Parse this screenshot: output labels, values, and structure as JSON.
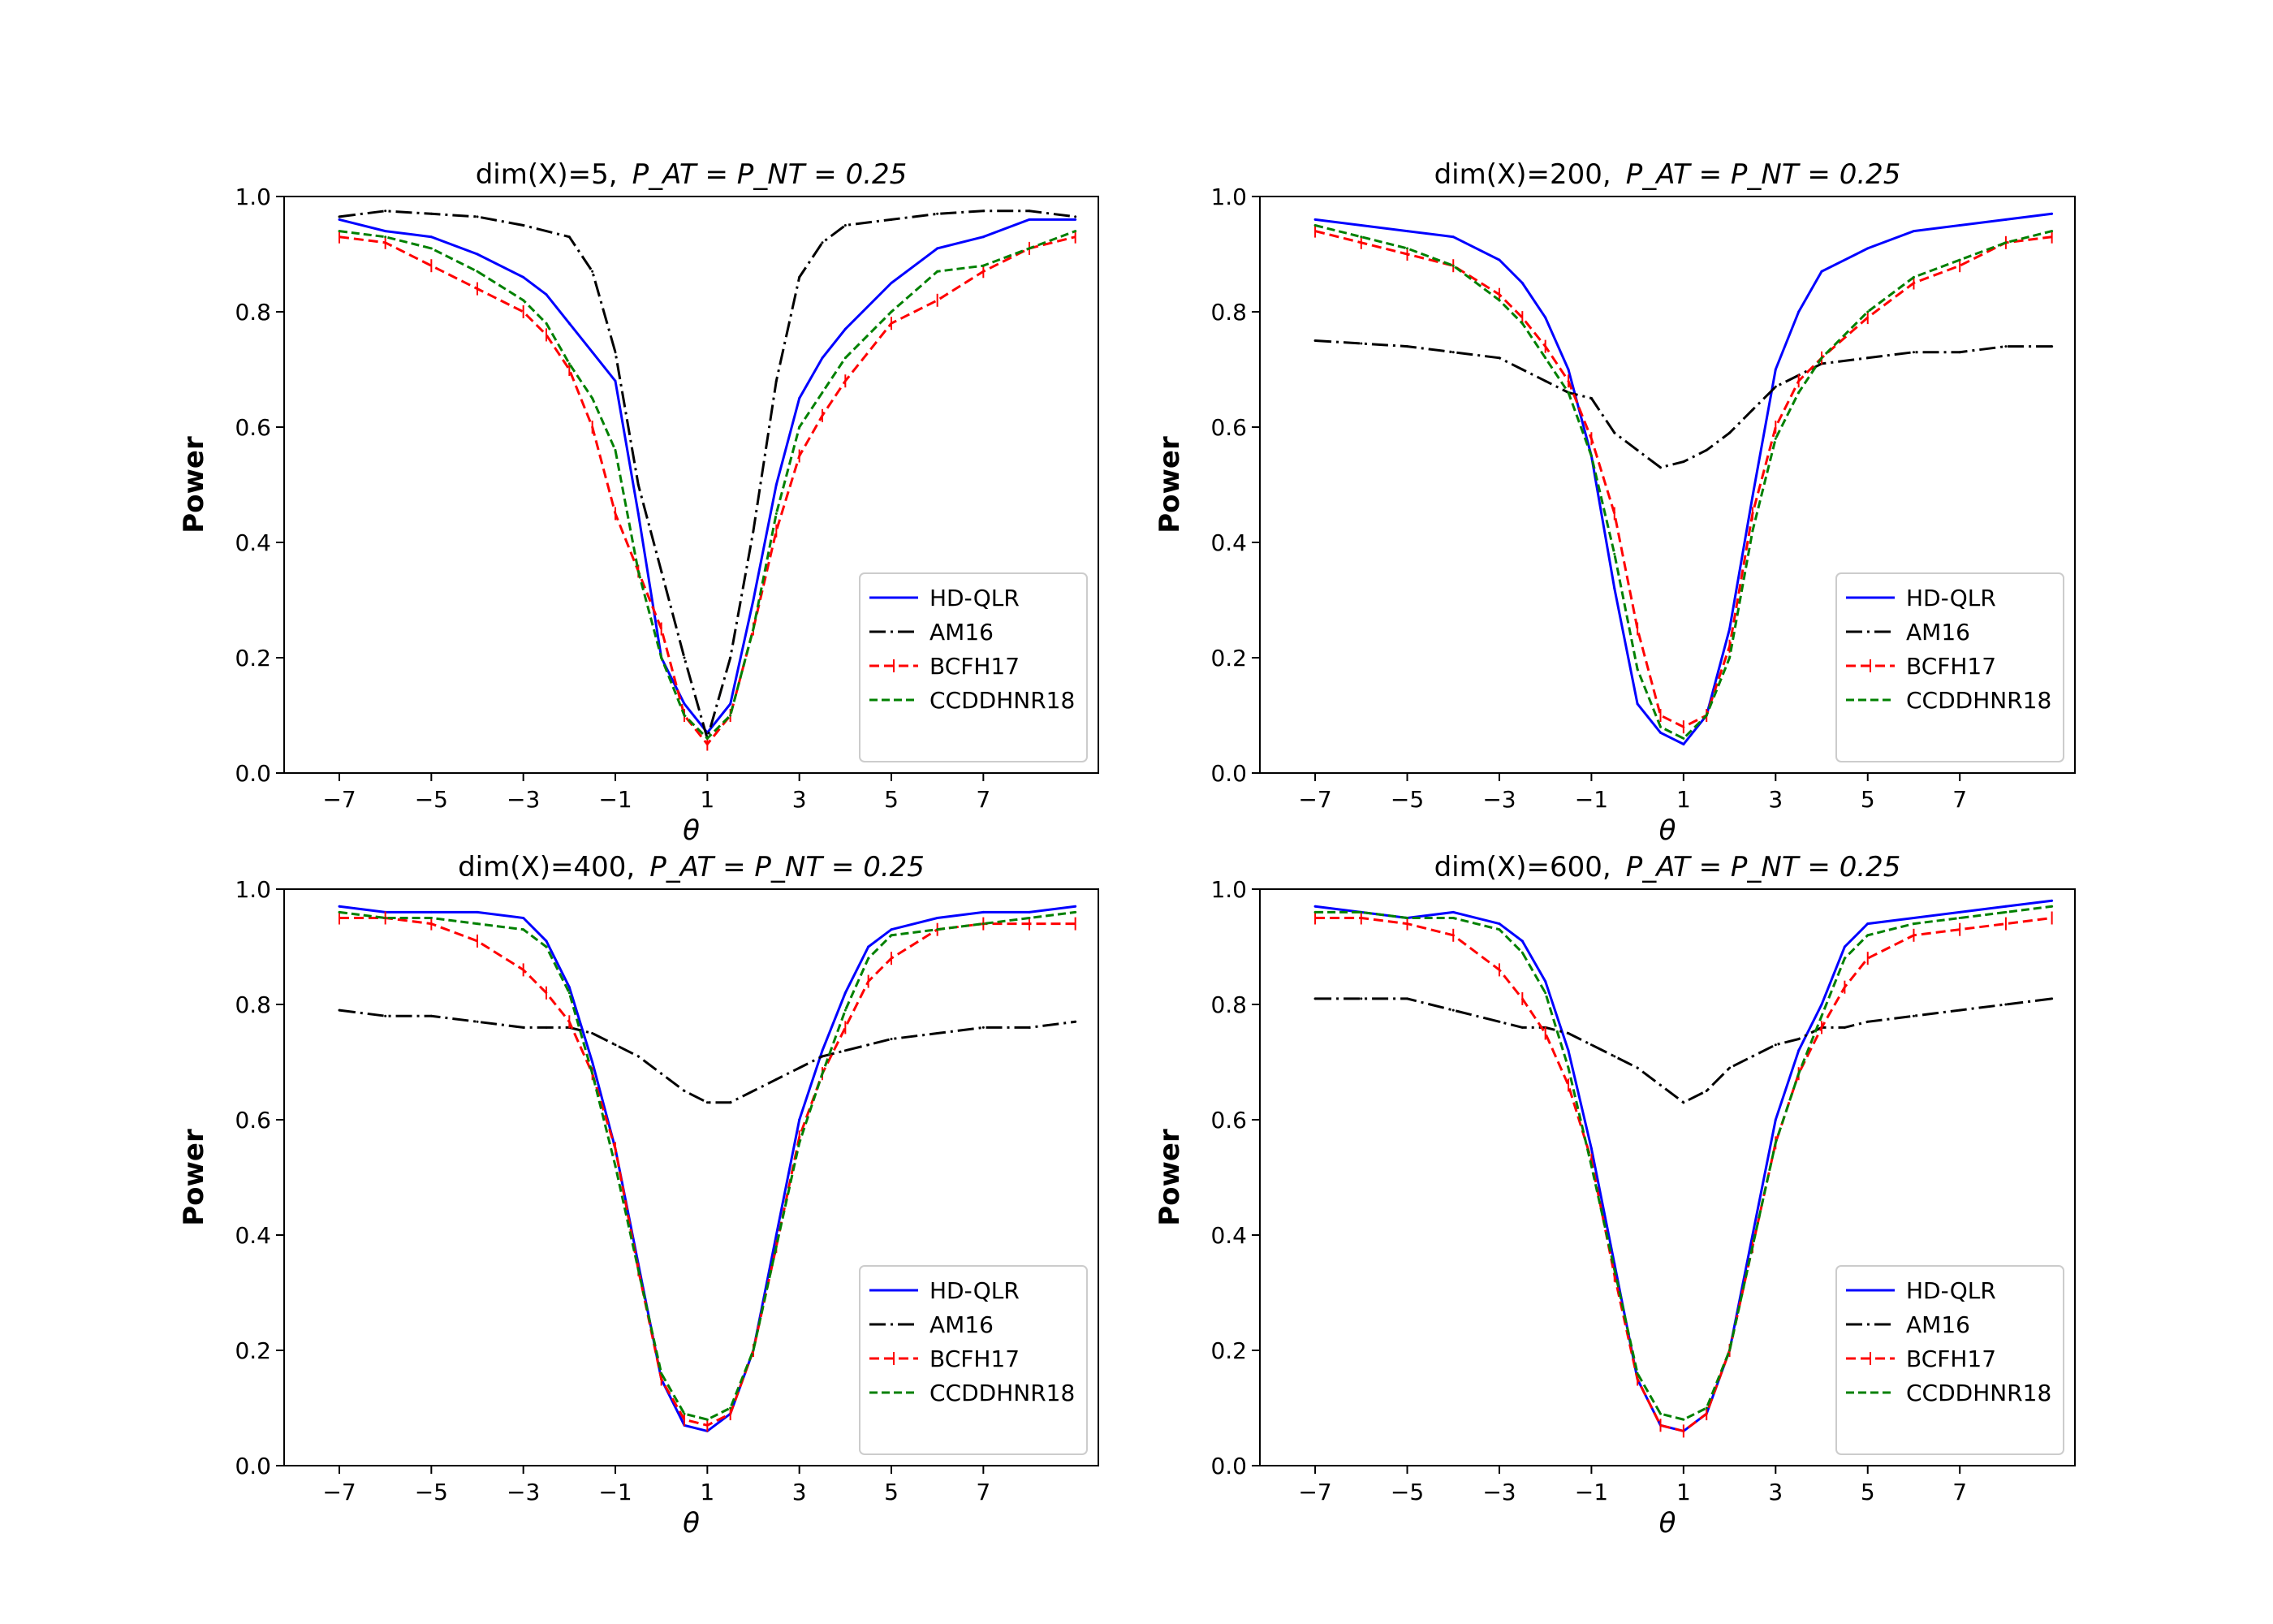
{
  "chart_data": [
    {
      "type": "line",
      "title": "dim(X)=5,",
      "title_math": "P_AT = P_NT = 0.25",
      "xlabel": "θ",
      "ylabel": "Power",
      "xlim": [
        -8.2,
        9.5
      ],
      "ylim": [
        0.0,
        1.0
      ],
      "xticks": [
        -7,
        -5,
        -3,
        -1,
        1,
        3,
        5,
        7
      ],
      "xtick_labels": [
        "−7",
        "−5",
        "−3",
        "−1",
        "1",
        "3",
        "5",
        "7"
      ],
      "yticks": [
        0.0,
        0.2,
        0.4,
        0.6,
        0.8,
        1.0
      ],
      "ytick_labels": [
        "0.0",
        "0.2",
        "0.4",
        "0.6",
        "0.8",
        "1.0"
      ],
      "legend": [
        "HD-QLR",
        "AM16",
        "BCFH17",
        "CCDDHNR18"
      ],
      "legend_location": "lower-right",
      "series": [
        {
          "name": "HD-QLR",
          "x": [
            -7,
            -6,
            -5,
            -4,
            -3,
            -2.5,
            -2,
            -1.5,
            -1,
            -0.5,
            0,
            0.5,
            1,
            1.5,
            2,
            2.5,
            3,
            3.5,
            4,
            5,
            6,
            7,
            8,
            9
          ],
          "values": [
            0.96,
            0.94,
            0.93,
            0.9,
            0.86,
            0.83,
            0.78,
            0.73,
            0.68,
            0.45,
            0.2,
            0.12,
            0.07,
            0.12,
            0.3,
            0.5,
            0.65,
            0.72,
            0.77,
            0.85,
            0.91,
            0.93,
            0.96,
            0.96
          ]
        },
        {
          "name": "AM16",
          "x": [
            -7,
            -6,
            -5,
            -4,
            -3,
            -2.5,
            -2,
            -1.5,
            -1,
            -0.5,
            0,
            0.5,
            1,
            1.5,
            2,
            2.5,
            3,
            3.5,
            4,
            5,
            6,
            7,
            8,
            9
          ],
          "values": [
            0.965,
            0.975,
            0.97,
            0.965,
            0.95,
            0.94,
            0.93,
            0.87,
            0.73,
            0.5,
            0.35,
            0.2,
            0.06,
            0.2,
            0.42,
            0.68,
            0.86,
            0.92,
            0.95,
            0.96,
            0.97,
            0.975,
            0.975,
            0.965
          ]
        },
        {
          "name": "BCFH17",
          "x": [
            -7,
            -6,
            -5,
            -4,
            -3,
            -2.5,
            -2,
            -1.5,
            -1,
            -0.5,
            0,
            0.5,
            1,
            1.5,
            2,
            2.5,
            3,
            3.5,
            4,
            5,
            6,
            7,
            8,
            9
          ],
          "values": [
            0.93,
            0.92,
            0.88,
            0.84,
            0.8,
            0.76,
            0.7,
            0.6,
            0.45,
            0.35,
            0.25,
            0.1,
            0.05,
            0.1,
            0.25,
            0.42,
            0.55,
            0.62,
            0.68,
            0.78,
            0.82,
            0.87,
            0.91,
            0.93
          ]
        },
        {
          "name": "CCDDHNR18",
          "x": [
            -7,
            -6,
            -5,
            -4,
            -3,
            -2.5,
            -2,
            -1.5,
            -1,
            -0.5,
            0,
            0.5,
            1,
            1.5,
            2,
            2.5,
            3,
            3.5,
            4,
            5,
            6,
            7,
            8,
            9
          ],
          "values": [
            0.94,
            0.93,
            0.91,
            0.87,
            0.82,
            0.78,
            0.71,
            0.65,
            0.56,
            0.35,
            0.2,
            0.1,
            0.06,
            0.1,
            0.25,
            0.45,
            0.6,
            0.66,
            0.72,
            0.8,
            0.87,
            0.88,
            0.91,
            0.94
          ]
        }
      ]
    },
    {
      "type": "line",
      "title": "dim(X)=200,",
      "title_math": "P_AT = P_NT = 0.25",
      "xlabel": "θ",
      "ylabel": "Power",
      "xlim": [
        -8.2,
        9.5
      ],
      "ylim": [
        0.0,
        1.0
      ],
      "xticks": [
        -7,
        -5,
        -3,
        -1,
        1,
        3,
        5,
        7
      ],
      "xtick_labels": [
        "−7",
        "−5",
        "−3",
        "−1",
        "1",
        "3",
        "5",
        "7"
      ],
      "yticks": [
        0.0,
        0.2,
        0.4,
        0.6,
        0.8,
        1.0
      ],
      "ytick_labels": [
        "0.0",
        "0.2",
        "0.4",
        "0.6",
        "0.8",
        "1.0"
      ],
      "legend": [
        "HD-QLR",
        "AM16",
        "BCFH17",
        "CCDDHNR18"
      ],
      "legend_location": "lower-right",
      "series": [
        {
          "name": "HD-QLR",
          "x": [
            -7,
            -6,
            -5,
            -4,
            -3,
            -2.5,
            -2,
            -1.5,
            -1,
            -0.5,
            0,
            0.5,
            1,
            1.5,
            2,
            2.5,
            3,
            3.5,
            4,
            5,
            6,
            7,
            8,
            9
          ],
          "values": [
            0.96,
            0.95,
            0.94,
            0.93,
            0.89,
            0.85,
            0.79,
            0.7,
            0.55,
            0.32,
            0.12,
            0.07,
            0.05,
            0.1,
            0.25,
            0.48,
            0.7,
            0.8,
            0.87,
            0.91,
            0.94,
            0.95,
            0.96,
            0.97
          ]
        },
        {
          "name": "AM16",
          "x": [
            -7,
            -6,
            -5,
            -4,
            -3,
            -2.5,
            -2,
            -1.5,
            -1,
            -0.5,
            0,
            0.5,
            1,
            1.5,
            2,
            2.5,
            3,
            3.5,
            4,
            5,
            6,
            7,
            8,
            9
          ],
          "values": [
            0.75,
            0.745,
            0.74,
            0.73,
            0.72,
            0.7,
            0.68,
            0.66,
            0.65,
            0.59,
            0.56,
            0.53,
            0.54,
            0.56,
            0.59,
            0.63,
            0.67,
            0.69,
            0.71,
            0.72,
            0.73,
            0.73,
            0.74,
            0.74
          ]
        },
        {
          "name": "BCFH17",
          "x": [
            -7,
            -6,
            -5,
            -4,
            -3,
            -2.5,
            -2,
            -1.5,
            -1,
            -0.5,
            0,
            0.5,
            1,
            1.5,
            2,
            2.5,
            3,
            3.5,
            4,
            5,
            6,
            7,
            8,
            9
          ],
          "values": [
            0.94,
            0.92,
            0.9,
            0.88,
            0.83,
            0.79,
            0.74,
            0.68,
            0.58,
            0.45,
            0.25,
            0.1,
            0.08,
            0.1,
            0.22,
            0.45,
            0.6,
            0.68,
            0.72,
            0.79,
            0.85,
            0.88,
            0.92,
            0.93
          ]
        },
        {
          "name": "CCDDHNR18",
          "x": [
            -7,
            -6,
            -5,
            -4,
            -3,
            -2.5,
            -2,
            -1.5,
            -1,
            -0.5,
            0,
            0.5,
            1,
            1.5,
            2,
            2.5,
            3,
            3.5,
            4,
            5,
            6,
            7,
            8,
            9
          ],
          "values": [
            0.95,
            0.93,
            0.91,
            0.88,
            0.82,
            0.78,
            0.72,
            0.66,
            0.55,
            0.38,
            0.18,
            0.08,
            0.06,
            0.1,
            0.2,
            0.42,
            0.58,
            0.66,
            0.72,
            0.8,
            0.86,
            0.89,
            0.92,
            0.94
          ]
        }
      ]
    },
    {
      "type": "line",
      "title": "dim(X)=400,",
      "title_math": "P_AT = P_NT = 0.25",
      "xlabel": "θ",
      "ylabel": "Power",
      "xlim": [
        -8.2,
        9.5
      ],
      "ylim": [
        0.0,
        1.0
      ],
      "xticks": [
        -7,
        -5,
        -3,
        -1,
        1,
        3,
        5,
        7
      ],
      "xtick_labels": [
        "−7",
        "−5",
        "−3",
        "−1",
        "1",
        "3",
        "5",
        "7"
      ],
      "yticks": [
        0.0,
        0.2,
        0.4,
        0.6,
        0.8,
        1.0
      ],
      "ytick_labels": [
        "0.0",
        "0.2",
        "0.4",
        "0.6",
        "0.8",
        "1.0"
      ],
      "legend": [
        "HD-QLR",
        "AM16",
        "BCFH17",
        "CCDDHNR18"
      ],
      "legend_location": "lower-right",
      "series": [
        {
          "name": "HD-QLR",
          "x": [
            -7,
            -6,
            -5,
            -4,
            -3,
            -2.5,
            -2,
            -1.5,
            -1,
            -0.5,
            0,
            0.5,
            1,
            1.5,
            2,
            2.5,
            3,
            3.5,
            4,
            4.5,
            5,
            6,
            7,
            8,
            9
          ],
          "values": [
            0.97,
            0.96,
            0.96,
            0.96,
            0.95,
            0.91,
            0.83,
            0.7,
            0.55,
            0.35,
            0.15,
            0.07,
            0.06,
            0.09,
            0.2,
            0.4,
            0.6,
            0.72,
            0.82,
            0.9,
            0.93,
            0.95,
            0.96,
            0.96,
            0.97
          ]
        },
        {
          "name": "AM16",
          "x": [
            -7,
            -6,
            -5,
            -4,
            -3,
            -2.5,
            -2,
            -1.5,
            -1,
            -0.5,
            0,
            0.5,
            1,
            1.5,
            2,
            2.5,
            3,
            3.5,
            4,
            4.5,
            5,
            6,
            7,
            8,
            9
          ],
          "values": [
            0.79,
            0.78,
            0.78,
            0.77,
            0.76,
            0.76,
            0.76,
            0.75,
            0.73,
            0.71,
            0.68,
            0.65,
            0.63,
            0.63,
            0.65,
            0.67,
            0.69,
            0.71,
            0.72,
            0.73,
            0.74,
            0.75,
            0.76,
            0.76,
            0.77
          ]
        },
        {
          "name": "BCFH17",
          "x": [
            -7,
            -6,
            -5,
            -4,
            -3,
            -2.5,
            -2,
            -1.5,
            -1,
            -0.5,
            0,
            0.5,
            1,
            1.5,
            2,
            2.5,
            3,
            3.5,
            4,
            4.5,
            5,
            6,
            7,
            8,
            9
          ],
          "values": [
            0.95,
            0.95,
            0.94,
            0.91,
            0.86,
            0.82,
            0.77,
            0.68,
            0.55,
            0.34,
            0.15,
            0.08,
            0.07,
            0.09,
            0.2,
            0.38,
            0.57,
            0.68,
            0.76,
            0.84,
            0.88,
            0.93,
            0.94,
            0.94,
            0.94
          ]
        },
        {
          "name": "CCDDHNR18",
          "x": [
            -7,
            -6,
            -5,
            -4,
            -3,
            -2.5,
            -2,
            -1.5,
            -1,
            -0.5,
            0,
            0.5,
            1,
            1.5,
            2,
            2.5,
            3,
            3.5,
            4,
            4.5,
            5,
            6,
            7,
            8,
            9
          ],
          "values": [
            0.96,
            0.95,
            0.95,
            0.94,
            0.93,
            0.9,
            0.82,
            0.68,
            0.52,
            0.34,
            0.16,
            0.09,
            0.08,
            0.1,
            0.2,
            0.38,
            0.56,
            0.68,
            0.79,
            0.88,
            0.92,
            0.93,
            0.94,
            0.95,
            0.96
          ]
        }
      ]
    },
    {
      "type": "line",
      "title": "dim(X)=600,",
      "title_math": "P_AT = P_NT = 0.25",
      "xlabel": "θ",
      "ylabel": "Power",
      "xlim": [
        -8.2,
        9.5
      ],
      "ylim": [
        0.0,
        1.0
      ],
      "xticks": [
        -7,
        -5,
        -3,
        -1,
        1,
        3,
        5,
        7
      ],
      "xtick_labels": [
        "−7",
        "−5",
        "−3",
        "−1",
        "1",
        "3",
        "5",
        "7"
      ],
      "yticks": [
        0.0,
        0.2,
        0.4,
        0.6,
        0.8,
        1.0
      ],
      "ytick_labels": [
        "0.0",
        "0.2",
        "0.4",
        "0.6",
        "0.8",
        "1.0"
      ],
      "legend": [
        "HD-QLR",
        "AM16",
        "BCFH17",
        "CCDDHNR18"
      ],
      "legend_location": "lower-right",
      "series": [
        {
          "name": "HD-QLR",
          "x": [
            -7,
            -6,
            -5,
            -4,
            -3,
            -2.5,
            -2,
            -1.5,
            -1,
            -0.5,
            0,
            0.5,
            1,
            1.5,
            2,
            2.5,
            3,
            3.5,
            4,
            4.5,
            5,
            6,
            7,
            8,
            9
          ],
          "values": [
            0.97,
            0.96,
            0.95,
            0.96,
            0.94,
            0.91,
            0.84,
            0.72,
            0.55,
            0.35,
            0.15,
            0.07,
            0.06,
            0.09,
            0.2,
            0.4,
            0.6,
            0.72,
            0.8,
            0.9,
            0.94,
            0.95,
            0.96,
            0.97,
            0.98
          ]
        },
        {
          "name": "AM16",
          "x": [
            -7,
            -6,
            -5,
            -4,
            -3,
            -2.5,
            -2,
            -1.5,
            -1,
            -0.5,
            0,
            0.5,
            1,
            1.5,
            2,
            2.5,
            3,
            3.5,
            4,
            4.5,
            5,
            6,
            7,
            8,
            9
          ],
          "values": [
            0.81,
            0.81,
            0.81,
            0.79,
            0.77,
            0.76,
            0.76,
            0.75,
            0.73,
            0.71,
            0.69,
            0.66,
            0.63,
            0.65,
            0.69,
            0.71,
            0.73,
            0.74,
            0.76,
            0.76,
            0.77,
            0.78,
            0.79,
            0.8,
            0.81
          ]
        },
        {
          "name": "BCFH17",
          "x": [
            -7,
            -6,
            -5,
            -4,
            -3,
            -2.5,
            -2,
            -1.5,
            -1,
            -0.5,
            0,
            0.5,
            1,
            1.5,
            2,
            2.5,
            3,
            3.5,
            4,
            4.5,
            5,
            6,
            7,
            8,
            9
          ],
          "values": [
            0.95,
            0.95,
            0.94,
            0.92,
            0.86,
            0.81,
            0.75,
            0.66,
            0.53,
            0.33,
            0.15,
            0.07,
            0.06,
            0.09,
            0.2,
            0.38,
            0.56,
            0.68,
            0.76,
            0.83,
            0.88,
            0.92,
            0.93,
            0.94,
            0.95
          ]
        },
        {
          "name": "CCDDHNR18",
          "x": [
            -7,
            -6,
            -5,
            -4,
            -3,
            -2.5,
            -2,
            -1.5,
            -1,
            -0.5,
            0,
            0.5,
            1,
            1.5,
            2,
            2.5,
            3,
            3.5,
            4,
            4.5,
            5,
            6,
            7,
            8,
            9
          ],
          "values": [
            0.96,
            0.96,
            0.95,
            0.95,
            0.93,
            0.89,
            0.82,
            0.69,
            0.52,
            0.34,
            0.16,
            0.09,
            0.08,
            0.1,
            0.2,
            0.38,
            0.56,
            0.68,
            0.78,
            0.88,
            0.92,
            0.94,
            0.95,
            0.96,
            0.97
          ]
        }
      ]
    }
  ],
  "colors": {
    "HD-QLR": "#0000ff",
    "AM16": "#000000",
    "BCFH17": "#ff0000",
    "CCDDHNR18": "#008000"
  }
}
